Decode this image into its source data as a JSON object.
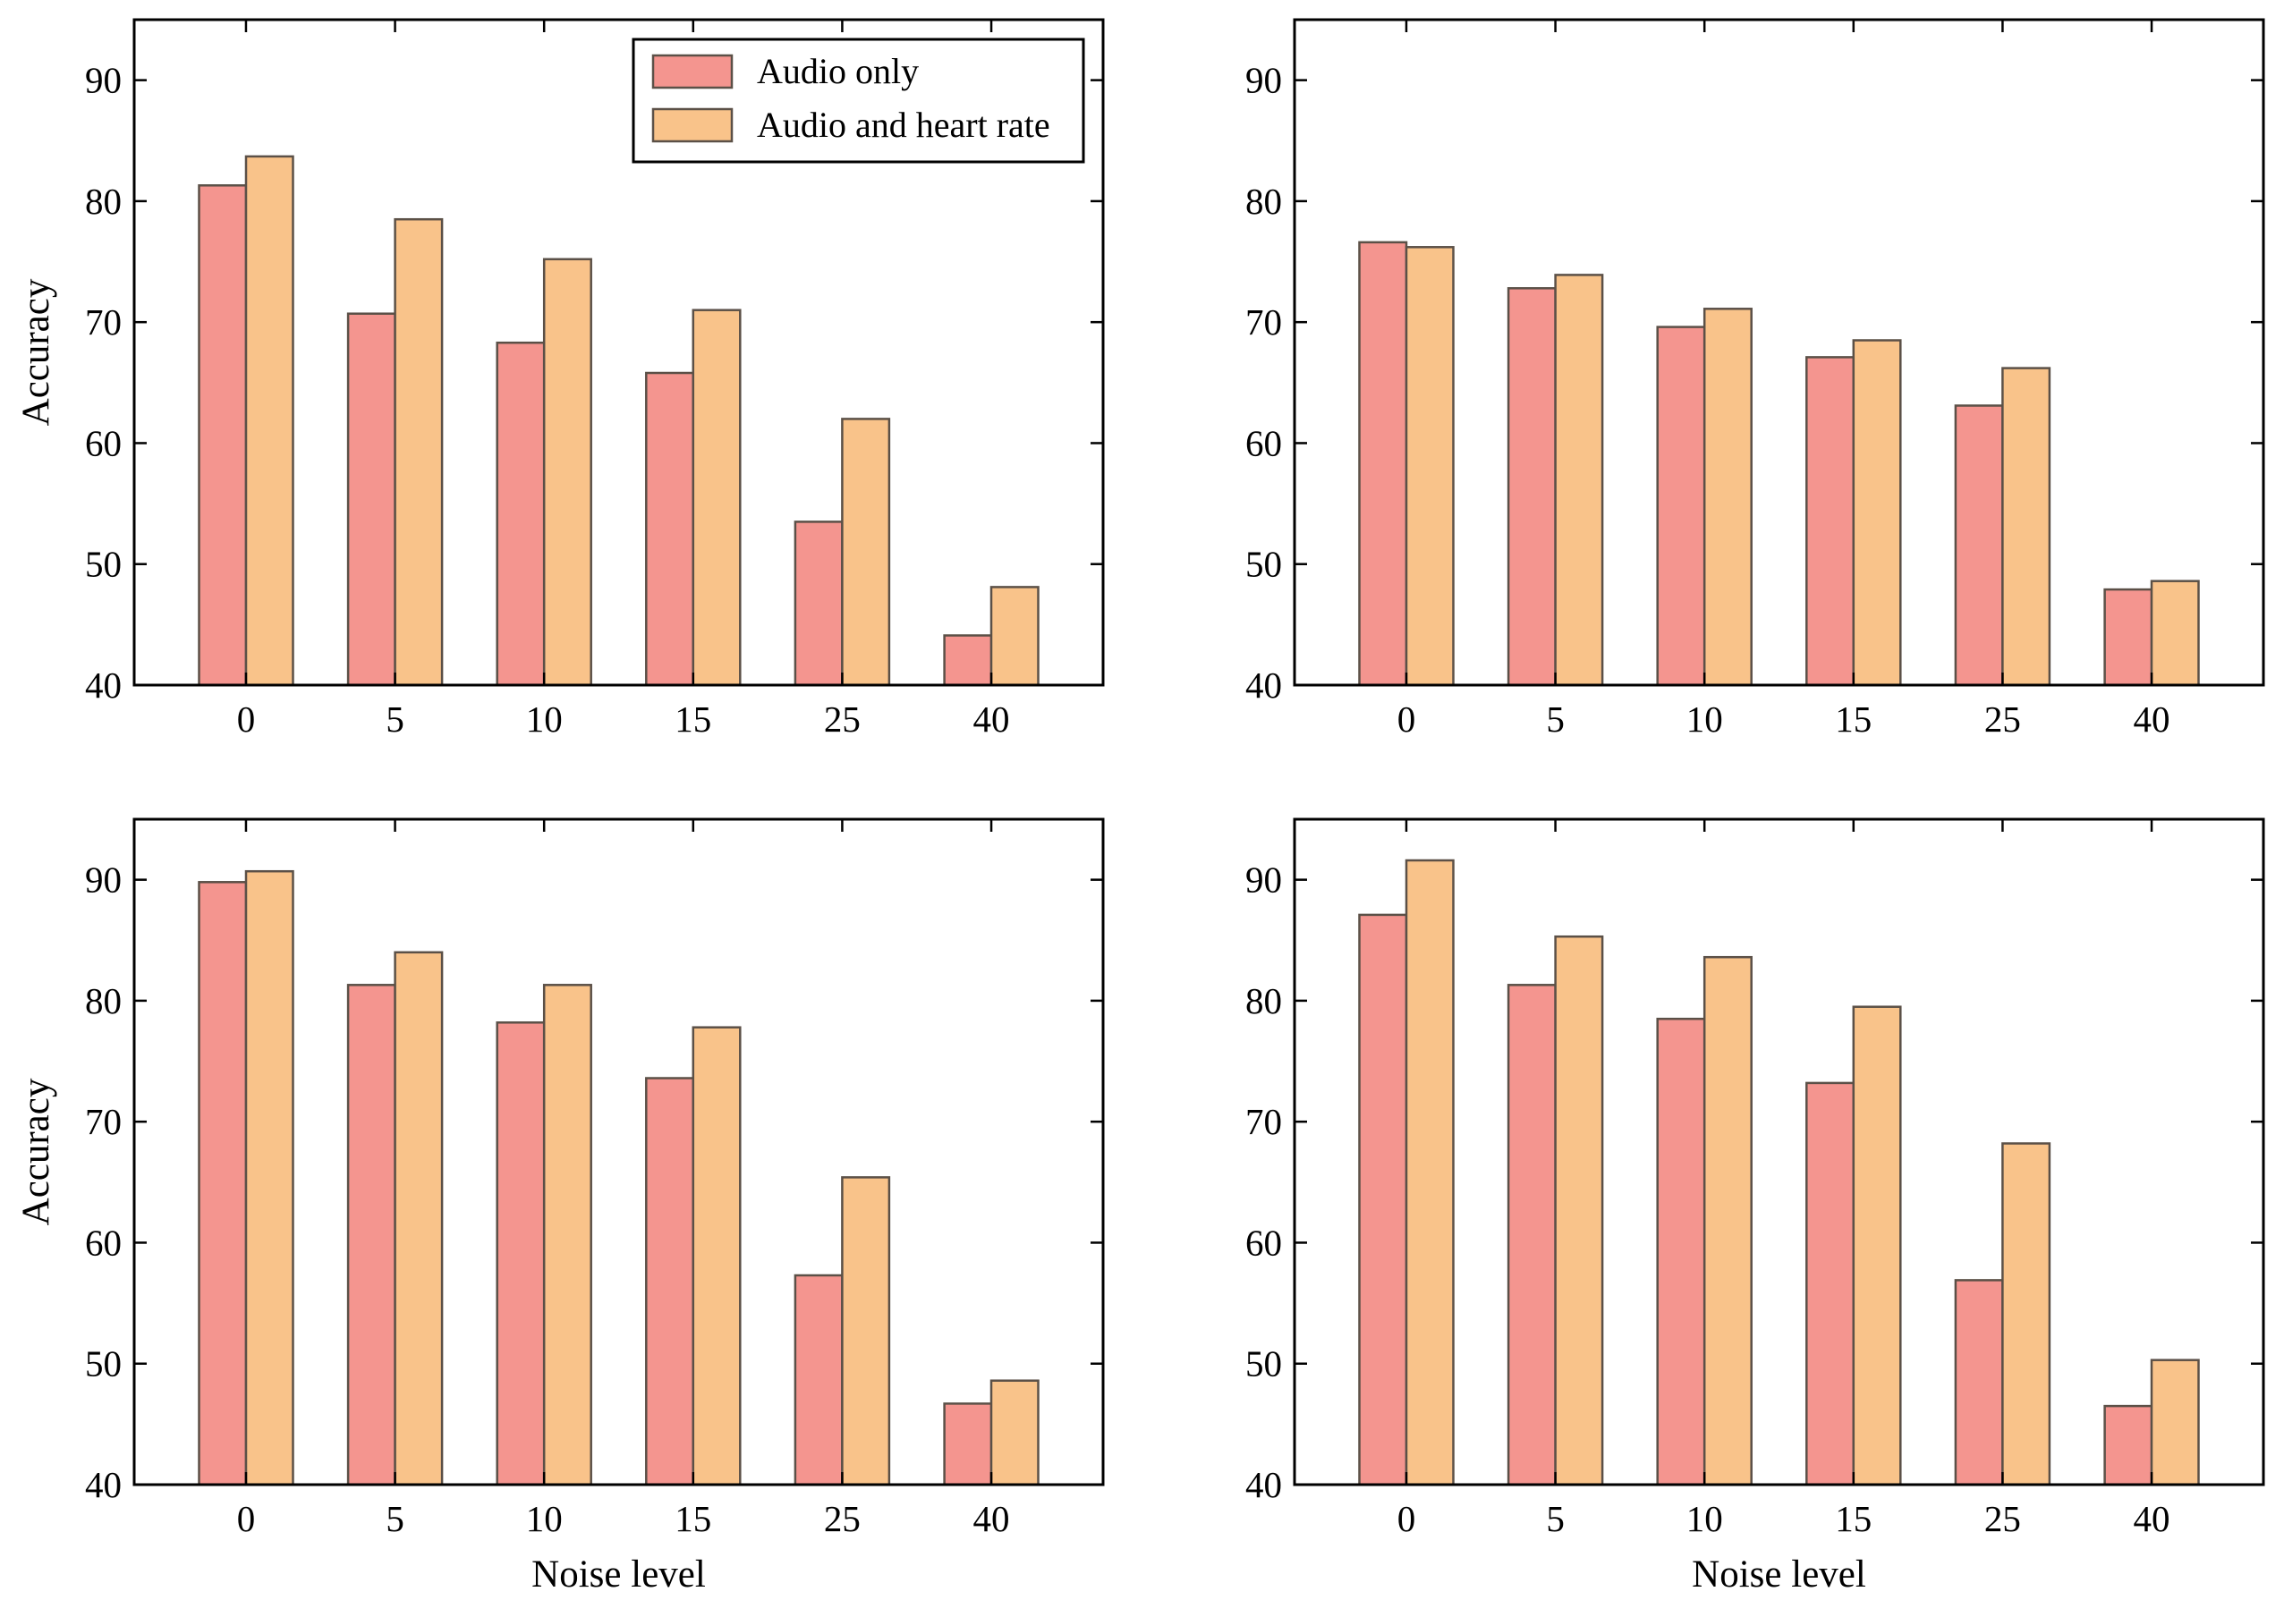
{
  "chart_data": [
    {
      "type": "bar",
      "categories": [
        "0",
        "5",
        "10",
        "15",
        "25",
        "40"
      ],
      "series": [
        {
          "name": "Audio only",
          "values": [
            81.3,
            70.7,
            68.3,
            65.8,
            53.5,
            44.1
          ]
        },
        {
          "name": "Audio and heart rate",
          "values": [
            83.7,
            78.5,
            75.2,
            71.0,
            62.0,
            48.1
          ]
        }
      ],
      "title": "",
      "xlabel": "",
      "ylabel": "Accuracy",
      "ylim": [
        40,
        95
      ],
      "yticks": [
        "40",
        "50",
        "60",
        "70",
        "80",
        "90"
      ],
      "legend": "top-right"
    },
    {
      "type": "bar",
      "categories": [
        "0",
        "5",
        "10",
        "15",
        "25",
        "40"
      ],
      "series": [
        {
          "name": "Audio only",
          "values": [
            76.6,
            72.8,
            69.6,
            67.1,
            63.1,
            47.9
          ]
        },
        {
          "name": "Audio and heart rate",
          "values": [
            76.2,
            73.9,
            71.1,
            68.5,
            66.2,
            48.6
          ]
        }
      ],
      "title": "",
      "xlabel": "",
      "ylabel": "",
      "ylim": [
        40,
        95
      ],
      "yticks": [
        "40",
        "50",
        "60",
        "70",
        "80",
        "90"
      ]
    },
    {
      "type": "bar",
      "categories": [
        "0",
        "5",
        "10",
        "15",
        "25",
        "40"
      ],
      "series": [
        {
          "name": "Audio only",
          "values": [
            89.8,
            81.3,
            78.2,
            73.6,
            57.3,
            46.7
          ]
        },
        {
          "name": "Audio and heart rate",
          "values": [
            90.7,
            84.0,
            81.3,
            77.8,
            65.4,
            48.6
          ]
        }
      ],
      "title": "",
      "xlabel": "Noise level",
      "ylabel": "Accuracy",
      "ylim": [
        40,
        95
      ],
      "yticks": [
        "40",
        "50",
        "60",
        "70",
        "80",
        "90"
      ]
    },
    {
      "type": "bar",
      "categories": [
        "0",
        "5",
        "10",
        "15",
        "25",
        "40"
      ],
      "series": [
        {
          "name": "Audio only",
          "values": [
            87.1,
            81.3,
            78.5,
            73.2,
            56.9,
            46.5
          ]
        },
        {
          "name": "Audio and heart rate",
          "values": [
            91.6,
            85.3,
            83.6,
            79.5,
            68.2,
            50.3
          ]
        }
      ],
      "title": "",
      "xlabel": "Noise level",
      "ylabel": "",
      "ylim": [
        40,
        95
      ],
      "yticks": [
        "40",
        "50",
        "60",
        "70",
        "80",
        "90"
      ]
    }
  ],
  "colors": {
    "series": [
      "#f4958f",
      "#f9c38a"
    ],
    "bar_edge": "#5b5047"
  }
}
